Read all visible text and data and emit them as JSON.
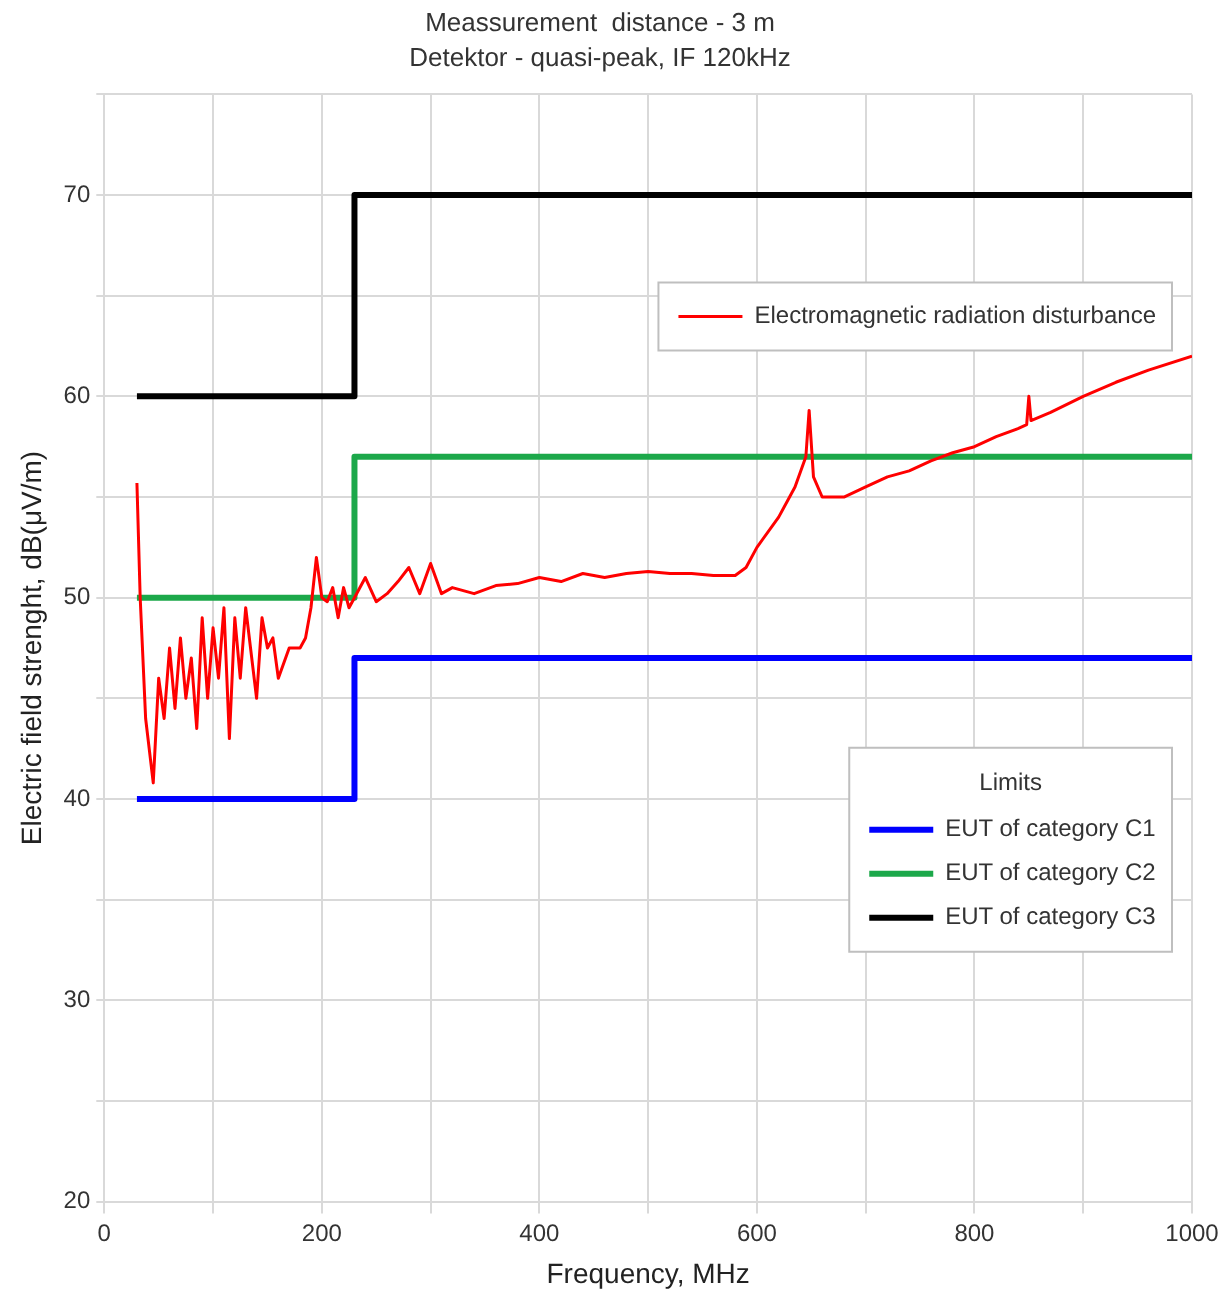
{
  "chart_data": {
    "type": "line",
    "title": "Meassurement  distance - 3 m",
    "subtitle": "Detektor - quasi-peak, IF 120kHz",
    "xlabel": "Frequency, MHz",
    "ylabel": "Electric field strenght, dB(μV/m)",
    "legend_title": "Limits",
    "legend": "right",
    "grid": true,
    "marker": "none",
    "line_style": "solid",
    "xlim": [
      0,
      1000
    ],
    "xticks": [
      0,
      {
        "value": 100,
        "label": null
      },
      200,
      {
        "value": 300,
        "label": null
      },
      400,
      {
        "value": 500,
        "label": null
      },
      600,
      {
        "value": 700,
        "label": null
      },
      800,
      {
        "value": 900,
        "label": null
      },
      1000
    ],
    "ylim": [
      20,
      75
    ],
    "yticks": [
      20,
      {
        "value": 25,
        "label": null
      },
      30,
      {
        "value": 35,
        "label": null
      },
      40,
      {
        "value": 45,
        "label": null
      },
      50,
      {
        "value": 55,
        "label": null
      },
      60,
      {
        "value": 65,
        "label": null
      },
      70,
      {
        "value": 75,
        "label": null
      }
    ],
    "series": [
      {
        "name": "Electromagnetic radiation disturbance",
        "color": "#ff0000",
        "type": "line",
        "x": [
          30,
          33,
          38,
          45,
          50,
          55,
          60,
          65,
          70,
          75,
          80,
          85,
          90,
          95,
          100,
          105,
          110,
          115,
          120,
          125,
          130,
          140,
          145,
          150,
          155,
          160,
          170,
          180,
          185,
          190,
          195,
          200,
          205,
          210,
          215,
          220,
          225,
          230,
          240,
          250,
          260,
          270,
          280,
          290,
          300,
          310,
          320,
          340,
          360,
          380,
          400,
          420,
          440,
          460,
          480,
          500,
          520,
          540,
          560,
          580,
          590,
          600,
          620,
          635,
          645,
          648,
          652,
          660,
          680,
          700,
          720,
          740,
          760,
          780,
          800,
          820,
          840,
          848,
          850,
          852,
          870,
          900,
          930,
          960,
          1000
        ],
        "values": [
          55.7,
          50,
          44,
          40.8,
          46,
          44,
          47.5,
          44.5,
          48,
          45,
          47,
          43.5,
          49,
          45,
          48.5,
          46,
          49.5,
          43,
          49,
          46,
          49.5,
          45,
          49,
          47.5,
          48,
          46,
          47.5,
          47.5,
          48,
          49.5,
          52,
          50,
          49.8,
          50.5,
          49,
          50.5,
          49.5,
          50,
          51,
          49.8,
          50.2,
          50.8,
          51.5,
          50.2,
          51.7,
          50.2,
          50.5,
          50.2,
          50.6,
          50.7,
          51,
          50.8,
          51.2,
          51,
          51.2,
          51.3,
          51.2,
          51.2,
          51.1,
          51.1,
          51.5,
          52.5,
          54,
          55.5,
          57,
          59.3,
          56,
          55,
          55,
          55.5,
          56,
          56.3,
          56.8,
          57.2,
          57.5,
          58,
          58.4,
          58.6,
          60,
          58.8,
          59.2,
          60,
          60.7,
          61.3,
          62
        ]
      },
      {
        "name": "EUT of category C1",
        "color": "#0000ff",
        "type": "step",
        "x": [
          30,
          230,
          1000
        ],
        "values": [
          40,
          47,
          47
        ]
      },
      {
        "name": "EUT of category C2",
        "color": "#1ca84a",
        "type": "step",
        "x": [
          30,
          230,
          1000
        ],
        "values": [
          50,
          57,
          57
        ]
      },
      {
        "name": "EUT of category C3",
        "color": "#000000",
        "type": "step",
        "x": [
          30,
          230,
          1000
        ],
        "values": [
          60,
          70,
          70
        ]
      }
    ]
  }
}
